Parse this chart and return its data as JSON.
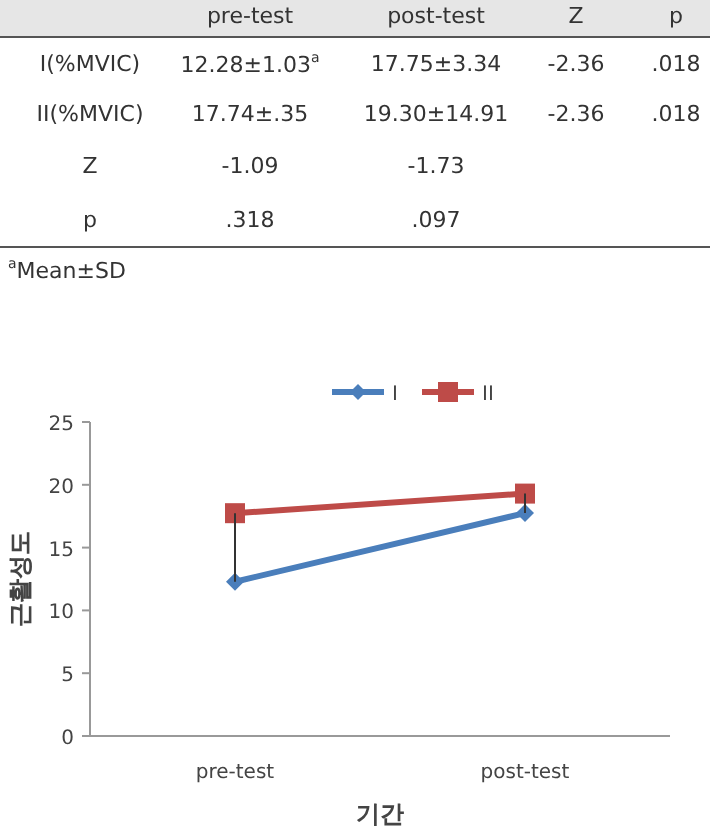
{
  "chart_data": {
    "type": "line",
    "categories": [
      "pre-test",
      "post-test"
    ],
    "xlabel": "기간",
    "ylabel": "근활성도",
    "ylim": [
      0,
      25
    ],
    "yticks": [
      0,
      5,
      10,
      15,
      20,
      25
    ],
    "grid": false,
    "legend": "top",
    "series": [
      {
        "name": "I",
        "color": "#4a7ebb",
        "marker": "diamond",
        "values": [
          12.28,
          17.75
        ],
        "errors": [
          [
            12.28,
            17.74
          ],
          [
            17.75,
            19.3
          ]
        ],
        "value_labels": [
          "12.28±1.03$^{a}$",
          "17.75±3.34"
        ]
      },
      {
        "name": "II",
        "color": "#be4b48",
        "marker": "square",
        "values": [
          17.74,
          19.3
        ],
        "value_labels": [
          "17.74±.35",
          "19.30±14.91"
        ]
      }
    ],
    "annotations": [
      "Z",
      "p",
      "I(%MVIC)",
      "-2.36",
      ".018",
      "II(%MVIC)",
      "-2.36",
      ".018",
      "Z",
      "-1.09",
      "-1.73",
      "p",
      ".318",
      ".097",
      "$^{a}$Mean±SD"
    ]
  }
}
